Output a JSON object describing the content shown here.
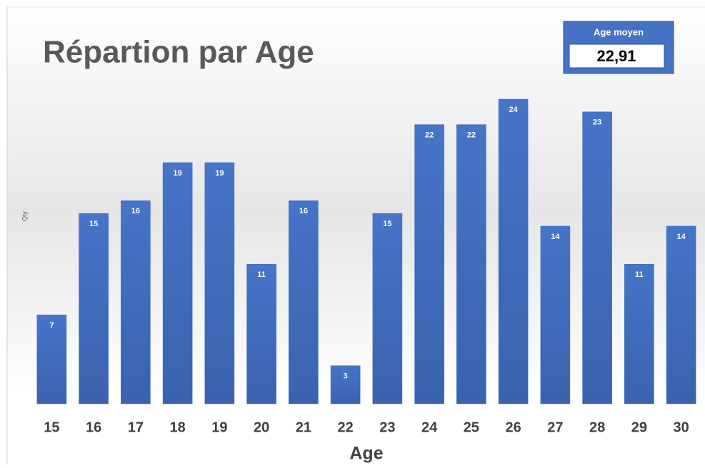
{
  "chart_data": {
    "type": "bar",
    "title": "Répartion par Age",
    "x_label": "Age",
    "y_label": "Qty",
    "categories": [
      "15",
      "16",
      "17",
      "18",
      "19",
      "20",
      "21",
      "22",
      "23",
      "24",
      "25",
      "26",
      "27",
      "28",
      "29",
      "30"
    ],
    "values": [
      7,
      15,
      16,
      19,
      19,
      11,
      16,
      3,
      15,
      22,
      22,
      24,
      14,
      23,
      11,
      14
    ],
    "color": "#4472c4",
    "annotation": {
      "label": "Age moyen",
      "value": "22,91"
    }
  }
}
